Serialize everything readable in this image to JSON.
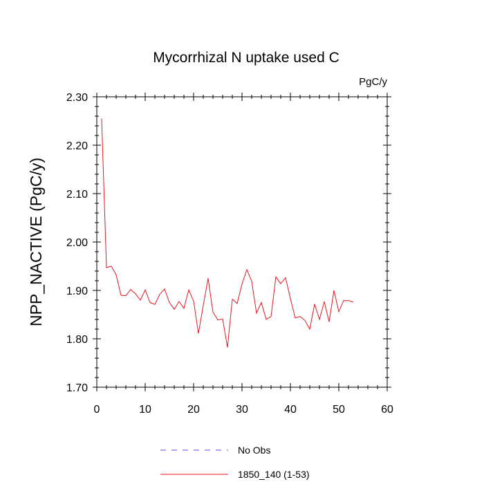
{
  "chart_data": {
    "type": "line",
    "title": "Mycorrhizal N uptake used C",
    "units_label": "PgC/y",
    "ylabel": "NPP_NACTIVE  (PgC/y)",
    "xlabel": "",
    "xlim": [
      0,
      60
    ],
    "ylim": [
      1.7,
      2.3
    ],
    "x_ticks": [
      0,
      10,
      20,
      30,
      40,
      50,
      60
    ],
    "x_tick_labels": [
      "0",
      "10",
      "20",
      "30",
      "40",
      "50",
      "60"
    ],
    "y_ticks": [
      1.7,
      1.8,
      1.9,
      2.0,
      2.1,
      2.2,
      2.3
    ],
    "y_tick_labels": [
      "1.70",
      "1.80",
      "1.90",
      "2.00",
      "2.10",
      "2.20",
      "2.30"
    ],
    "grid": false,
    "legend_position": "bottom",
    "series": [
      {
        "name": "1850_140 (1-53)",
        "color": "#e8141c",
        "style": "solid",
        "x": [
          1,
          2,
          3,
          4,
          5,
          6,
          7,
          8,
          9,
          10,
          11,
          12,
          13,
          14,
          15,
          16,
          17,
          18,
          19,
          20,
          21,
          22,
          23,
          24,
          25,
          26,
          27,
          28,
          29,
          30,
          31,
          32,
          33,
          34,
          35,
          36,
          37,
          38,
          39,
          40,
          41,
          42,
          43,
          44,
          45,
          46,
          47,
          48,
          49,
          50,
          51,
          52,
          53
        ],
        "y": [
          2.255,
          1.947,
          1.95,
          1.932,
          1.89,
          1.889,
          1.902,
          1.893,
          1.88,
          1.901,
          1.875,
          1.871,
          1.892,
          1.903,
          1.875,
          1.861,
          1.877,
          1.863,
          1.901,
          1.878,
          1.811,
          1.869,
          1.925,
          1.855,
          1.839,
          1.841,
          1.782,
          1.882,
          1.873,
          1.913,
          1.943,
          1.919,
          1.853,
          1.875,
          1.84,
          1.846,
          1.928,
          1.914,
          1.926,
          1.883,
          1.843,
          1.846,
          1.838,
          1.82,
          1.872,
          1.84,
          1.877,
          1.835,
          1.9,
          1.856,
          1.879,
          1.879,
          1.876
        ]
      }
    ],
    "legend": [
      {
        "label": "No Obs",
        "color": "#4d4dff",
        "style": "dashed"
      },
      {
        "label": "1850_140 (1-53)",
        "color": "#e8141c",
        "style": "solid"
      }
    ]
  }
}
